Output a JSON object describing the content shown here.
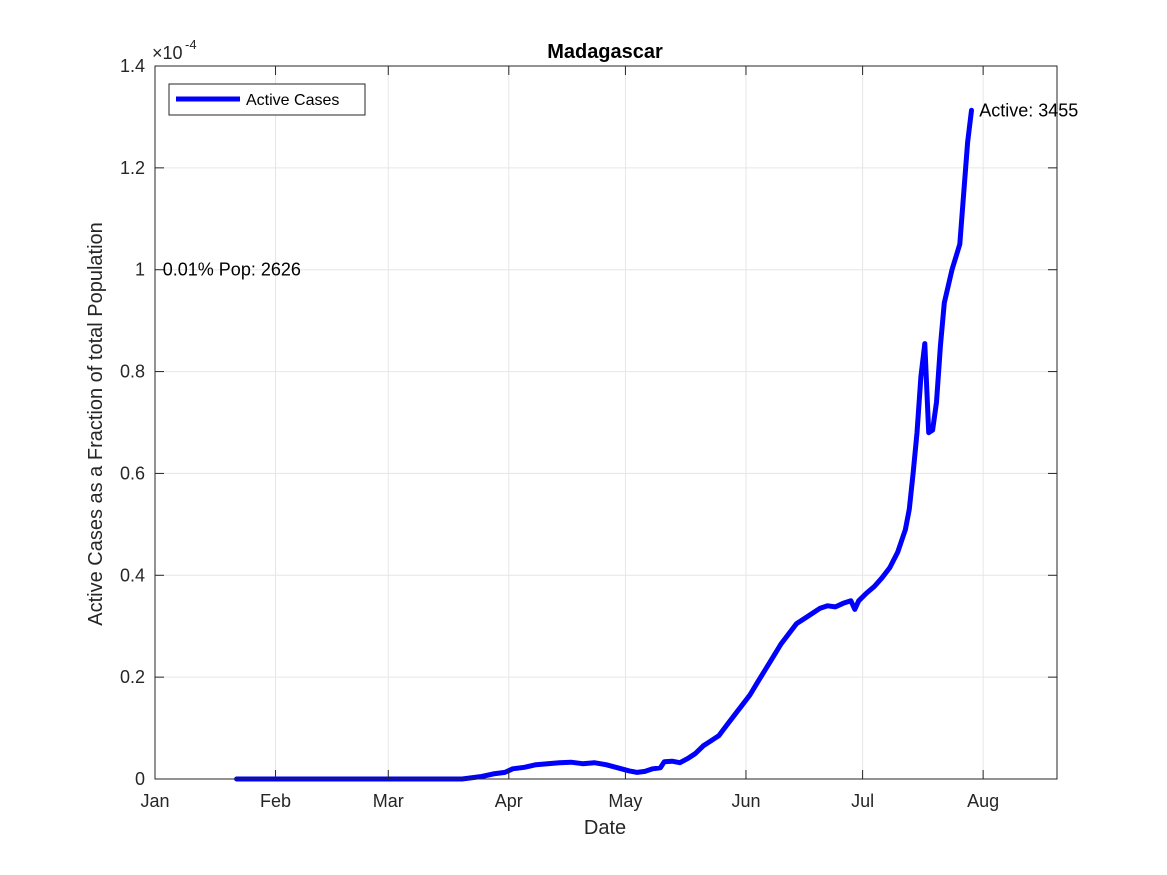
{
  "chart_data": {
    "type": "line",
    "title": "Madagascar",
    "xlabel": "Date",
    "ylabel": "Active Cases as a Fraction of total Population",
    "y_exponent_label": "×10",
    "y_exponent_power": "-4",
    "y_multiplier": 0.0001,
    "xlim": [
      "2020-01-01",
      "2020-08-20"
    ],
    "ylim": [
      0,
      1.4
    ],
    "x_ticks": [
      {
        "date": "2020-01-01",
        "label": "Jan"
      },
      {
        "date": "2020-02-01",
        "label": "Feb"
      },
      {
        "date": "2020-03-01",
        "label": "Mar"
      },
      {
        "date": "2020-04-01",
        "label": "Apr"
      },
      {
        "date": "2020-05-01",
        "label": "May"
      },
      {
        "date": "2020-06-01",
        "label": "Jun"
      },
      {
        "date": "2020-07-01",
        "label": "Jul"
      },
      {
        "date": "2020-08-01",
        "label": "Aug"
      }
    ],
    "y_ticks": [
      {
        "value": 0,
        "label": "0"
      },
      {
        "value": 0.2,
        "label": "0.2"
      },
      {
        "value": 0.4,
        "label": "0.4"
      },
      {
        "value": 0.6,
        "label": "0.6"
      },
      {
        "value": 0.8,
        "label": "0.8"
      },
      {
        "value": 1,
        "label": "1"
      },
      {
        "value": 1.2,
        "label": "1.2"
      },
      {
        "value": 1.4,
        "label": "1.4"
      }
    ],
    "grid": true,
    "legend_position": "top-left",
    "series": [
      {
        "name": "Active Cases",
        "color": "#0000ff",
        "points": [
          [
            "2020-01-22",
            0
          ],
          [
            "2020-02-15",
            0
          ],
          [
            "2020-03-10",
            0
          ],
          [
            "2020-03-20",
            0
          ],
          [
            "2020-03-22",
            0.002
          ],
          [
            "2020-03-25",
            0.005
          ],
          [
            "2020-03-28",
            0.01
          ],
          [
            "2020-03-31",
            0.013
          ],
          [
            "2020-04-02",
            0.02
          ],
          [
            "2020-04-05",
            0.023
          ],
          [
            "2020-04-08",
            0.028
          ],
          [
            "2020-04-11",
            0.03
          ],
          [
            "2020-04-14",
            0.032
          ],
          [
            "2020-04-17",
            0.033
          ],
          [
            "2020-04-20",
            0.03
          ],
          [
            "2020-04-23",
            0.032
          ],
          [
            "2020-04-26",
            0.028
          ],
          [
            "2020-04-29",
            0.022
          ],
          [
            "2020-05-02",
            0.016
          ],
          [
            "2020-05-04",
            0.013
          ],
          [
            "2020-05-06",
            0.015
          ],
          [
            "2020-05-08",
            0.02
          ],
          [
            "2020-05-10",
            0.022
          ],
          [
            "2020-05-11",
            0.034
          ],
          [
            "2020-05-13",
            0.035
          ],
          [
            "2020-05-15",
            0.032
          ],
          [
            "2020-05-17",
            0.04
          ],
          [
            "2020-05-19",
            0.05
          ],
          [
            "2020-05-21",
            0.065
          ],
          [
            "2020-05-23",
            0.075
          ],
          [
            "2020-05-25",
            0.085
          ],
          [
            "2020-05-27",
            0.105
          ],
          [
            "2020-05-29",
            0.125
          ],
          [
            "2020-05-31",
            0.145
          ],
          [
            "2020-06-02",
            0.165
          ],
          [
            "2020-06-04",
            0.19
          ],
          [
            "2020-06-06",
            0.215
          ],
          [
            "2020-06-08",
            0.24
          ],
          [
            "2020-06-10",
            0.265
          ],
          [
            "2020-06-12",
            0.285
          ],
          [
            "2020-06-14",
            0.305
          ],
          [
            "2020-06-16",
            0.315
          ],
          [
            "2020-06-18",
            0.325
          ],
          [
            "2020-06-20",
            0.335
          ],
          [
            "2020-06-22",
            0.34
          ],
          [
            "2020-06-24",
            0.338
          ],
          [
            "2020-06-26",
            0.345
          ],
          [
            "2020-06-28",
            0.35
          ],
          [
            "2020-06-29",
            0.333
          ],
          [
            "2020-06-30",
            0.35
          ],
          [
            "2020-07-02",
            0.365
          ],
          [
            "2020-07-04",
            0.378
          ],
          [
            "2020-07-06",
            0.395
          ],
          [
            "2020-07-08",
            0.415
          ],
          [
            "2020-07-10",
            0.445
          ],
          [
            "2020-07-12",
            0.49
          ],
          [
            "2020-07-13",
            0.53
          ],
          [
            "2020-07-14",
            0.6
          ],
          [
            "2020-07-15",
            0.68
          ],
          [
            "2020-07-16",
            0.79
          ],
          [
            "2020-07-17",
            0.855
          ],
          [
            "2020-07-18",
            0.68
          ],
          [
            "2020-07-19",
            0.685
          ],
          [
            "2020-07-20",
            0.74
          ],
          [
            "2020-07-21",
            0.85
          ],
          [
            "2020-07-22",
            0.935
          ],
          [
            "2020-07-24",
            1.0
          ],
          [
            "2020-07-26",
            1.05
          ],
          [
            "2020-07-27",
            1.15
          ],
          [
            "2020-07-28",
            1.25
          ],
          [
            "2020-07-29",
            1.313
          ]
        ]
      }
    ],
    "annotations": [
      {
        "text": "Active: 3455",
        "date": "2020-07-31",
        "value": 1.313
      },
      {
        "text": "0.01% Pop: 2626",
        "date": "2020-01-03",
        "value": 1.0
      }
    ]
  }
}
